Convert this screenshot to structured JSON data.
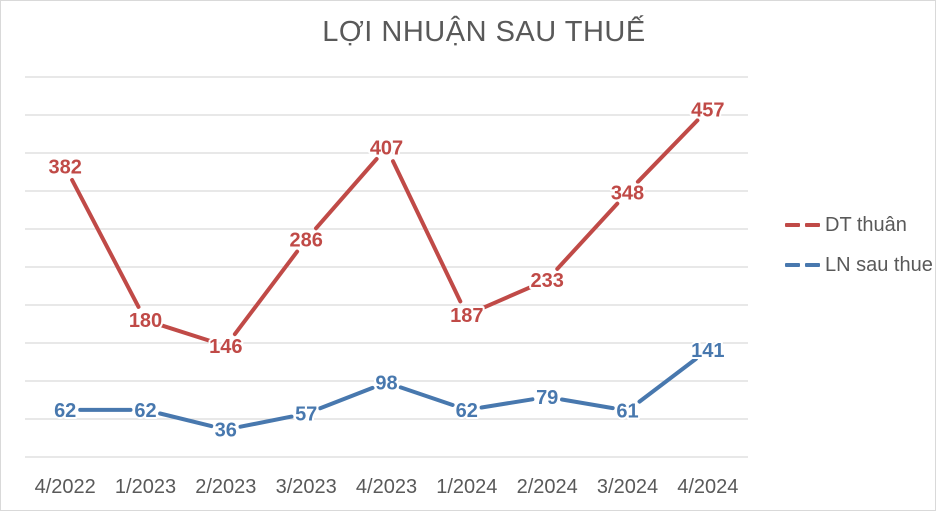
{
  "title": "LỢI NHUẬN SAU THUẾ",
  "legend": [
    {
      "label": "DT thuân",
      "color": "#c04a47"
    },
    {
      "label": "LN sau thue",
      "color": "#4878ae"
    }
  ],
  "colors": {
    "series_red": "#c04a47",
    "series_blue": "#4878ae",
    "gridline": "#d9d9d9",
    "axis_text": "#595959",
    "title_text": "#595959",
    "frame_border": "#d9d9d9",
    "background": "#ffffff"
  },
  "chart_data": {
    "type": "line",
    "title": "LỢI NHUẬN SAU THUẾ",
    "categories": [
      "4/2022",
      "1/2023",
      "2/2023",
      "3/2023",
      "4/2023",
      "1/2024",
      "2/2024",
      "3/2024",
      "4/2024"
    ],
    "series": [
      {
        "name": "DT thuân",
        "color": "#c04a47",
        "values": [
          382,
          180,
          146,
          286,
          407,
          187,
          233,
          348,
          457
        ]
      },
      {
        "name": "LN sau thue",
        "color": "#4878ae",
        "values": [
          62,
          62,
          36,
          57,
          98,
          62,
          79,
          61,
          141
        ]
      }
    ],
    "xlabel": "",
    "ylabel": "",
    "ylim": [
      0,
      500
    ],
    "gridline_step": 50,
    "grid": true,
    "y_axis_labels_shown": false,
    "data_labels": "centered-on-points",
    "legend_position": "right",
    "line_style": "dashed-segments"
  }
}
